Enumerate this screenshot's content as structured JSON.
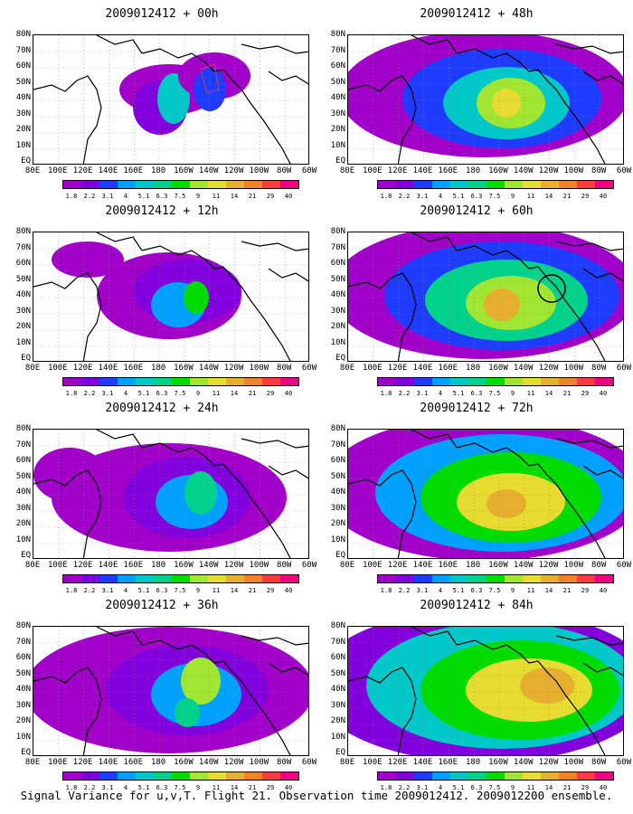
{
  "caption": "Signal Variance for u,v,T. Flight 21. Observation time 2009012412. 2009012200 ensemble.",
  "lat_labels": [
    "80N",
    "70N",
    "60N",
    "50N",
    "40N",
    "30N",
    "20N",
    "10N",
    "EQ"
  ],
  "lon_labels": [
    "80E",
    "100E",
    "120E",
    "140E",
    "160E",
    "180",
    "160W",
    "140W",
    "120W",
    "100W",
    "80W",
    "60W"
  ],
  "colorbar": {
    "colors": [
      "#a000c8",
      "#8200dc",
      "#1e3cff",
      "#00a0ff",
      "#00c8c8",
      "#00d28c",
      "#00dc00",
      "#a0e632",
      "#e6dc32",
      "#e6af2d",
      "#f08228",
      "#fa3c3c",
      "#f00082"
    ],
    "labels": [
      "1.8",
      "2.2",
      "3.1",
      "4",
      "5.1",
      "6.3",
      "7.5",
      "9",
      "11",
      "14",
      "21",
      "29",
      "40"
    ]
  },
  "panels": [
    {
      "title": "2009012412 + 00h",
      "column": "left"
    },
    {
      "title": "2009012412 + 12h",
      "column": "left"
    },
    {
      "title": "2009012412 + 24h",
      "column": "left"
    },
    {
      "title": "2009012412 + 36h",
      "column": "left"
    },
    {
      "title": "2009012412 + 48h",
      "column": "right"
    },
    {
      "title": "2009012412 + 60h",
      "column": "right"
    },
    {
      "title": "2009012412 + 72h",
      "column": "right"
    },
    {
      "title": "2009012412 + 84h",
      "column": "right"
    }
  ]
}
